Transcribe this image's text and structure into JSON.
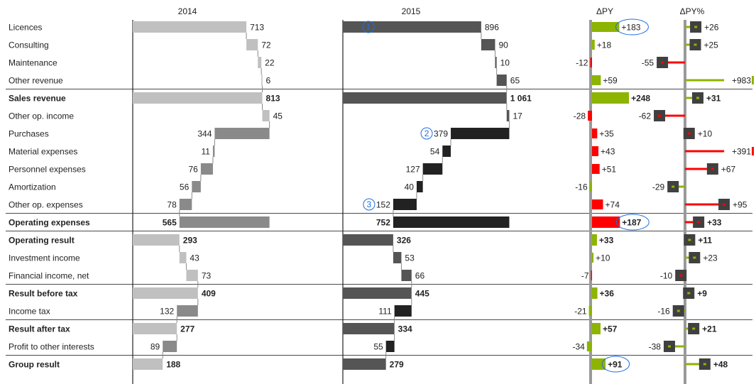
{
  "chart_data": {
    "type": "bar",
    "subtype": "variance-waterfall",
    "columns": {
      "y2014": "2014",
      "y2015": "2015",
      "dpy": "ΔPY",
      "dpyp": "ΔPY%"
    },
    "rows": [
      {
        "label": "Licences",
        "v2014": 713,
        "t2014": "713",
        "v2015": 896,
        "t2015": "896",
        "dpy": 183,
        "tdpy": "+183",
        "dpyp": 26,
        "tdpyp": "+26",
        "type": "inc",
        "bold": false,
        "sepAfter": false
      },
      {
        "label": "Consulting",
        "v2014": 72,
        "t2014": "72",
        "v2015": 90,
        "t2015": "90",
        "dpy": 18,
        "tdpy": "+18",
        "dpyp": 25,
        "tdpyp": "+25",
        "type": "inc",
        "bold": false,
        "sepAfter": false
      },
      {
        "label": "Maintenance",
        "v2014": 22,
        "t2014": "22",
        "v2015": 10,
        "t2015": "10",
        "dpy": -12,
        "tdpy": "-12",
        "dpyp": -55,
        "tdpyp": "-55",
        "type": "inc",
        "bold": false,
        "sepAfter": false
      },
      {
        "label": "Other revenue",
        "v2014": 6,
        "t2014": "6",
        "v2015": 65,
        "t2015": "65",
        "dpy": 59,
        "tdpy": "+59",
        "dpyp": 983,
        "tdpyp": "+983",
        "type": "inc",
        "bold": false,
        "sepAfter": true
      },
      {
        "label": "Sales revenue",
        "v2014": 813,
        "t2014": "813",
        "v2015": 1061,
        "t2015": "1 061",
        "dpy": 248,
        "tdpy": "+248",
        "dpyp": 31,
        "tdpyp": "+31",
        "type": "total",
        "bold": true,
        "sepAfter": false
      },
      {
        "label": "Other op. income",
        "v2014": 45,
        "t2014": "45",
        "v2015": 17,
        "t2015": "17",
        "dpy": -28,
        "tdpy": "-28",
        "dpyp": -62,
        "tdpyp": "-62",
        "type": "inc",
        "bold": false,
        "sepAfter": false
      },
      {
        "label": "Purchases",
        "v2014": 344,
        "t2014": "344",
        "v2015": 379,
        "t2015": "379",
        "dpy": 35,
        "tdpy": "+35",
        "dpyp": 10,
        "tdpyp": "+10",
        "type": "exp",
        "bold": false,
        "sepAfter": false
      },
      {
        "label": "Material expenses",
        "v2014": 11,
        "t2014": "11",
        "v2015": 54,
        "t2015": "54",
        "dpy": 43,
        "tdpy": "+43",
        "dpyp": 391,
        "tdpyp": "+391",
        "type": "exp",
        "bold": false,
        "sepAfter": false
      },
      {
        "label": "Personnel expenses",
        "v2014": 76,
        "t2014": "76",
        "v2015": 127,
        "t2015": "127",
        "dpy": 51,
        "tdpy": "+51",
        "dpyp": 67,
        "tdpyp": "+67",
        "type": "exp",
        "bold": false,
        "sepAfter": false
      },
      {
        "label": "Amortization",
        "v2014": 56,
        "t2014": "56",
        "v2015": 40,
        "t2015": "40",
        "dpy": -16,
        "tdpy": "-16",
        "dpyp": -29,
        "tdpyp": "-29",
        "type": "exp",
        "bold": false,
        "sepAfter": false
      },
      {
        "label": "Other op. expenses",
        "v2014": 78,
        "t2014": "78",
        "v2015": 152,
        "t2015": "152",
        "dpy": 74,
        "tdpy": "+74",
        "dpyp": 95,
        "tdpyp": "+95",
        "type": "exp",
        "bold": false,
        "sepAfter": true
      },
      {
        "label": "Operating expenses",
        "v2014": 565,
        "t2014": "565",
        "v2015": 752,
        "t2015": "752",
        "dpy": 187,
        "tdpy": "+187",
        "dpyp": 33,
        "tdpyp": "+33",
        "type": "exptotal",
        "bold": true,
        "sepAfter": true
      },
      {
        "label": "Operating result",
        "v2014": 293,
        "t2014": "293",
        "v2015": 326,
        "t2015": "326",
        "dpy": 33,
        "tdpy": "+33",
        "dpyp": 11,
        "tdpyp": "+11",
        "type": "result",
        "bold": true,
        "sepAfter": false
      },
      {
        "label": "Investment income",
        "v2014": 43,
        "t2014": "43",
        "v2015": 53,
        "t2015": "53",
        "dpy": 10,
        "tdpy": "+10",
        "dpyp": 23,
        "tdpyp": "+23",
        "type": "inc",
        "bold": false,
        "sepAfter": false
      },
      {
        "label": "Financial income, net",
        "v2014": 73,
        "t2014": "73",
        "v2015": 66,
        "t2015": "66",
        "dpy": -7,
        "tdpy": "-7",
        "dpyp": -10,
        "tdpyp": "-10",
        "type": "inc",
        "bold": false,
        "sepAfter": true
      },
      {
        "label": "Result before tax",
        "v2014": 409,
        "t2014": "409",
        "v2015": 445,
        "t2015": "445",
        "dpy": 36,
        "tdpy": "+36",
        "dpyp": 9,
        "tdpyp": "+9",
        "type": "result",
        "bold": true,
        "sepAfter": false
      },
      {
        "label": "Income tax",
        "v2014": 132,
        "t2014": "132",
        "v2015": 111,
        "t2015": "111",
        "dpy": -21,
        "tdpy": "-21",
        "dpyp": -16,
        "tdpyp": "-16",
        "type": "ded",
        "bold": false,
        "sepAfter": true
      },
      {
        "label": "Result after tax",
        "v2014": 277,
        "t2014": "277",
        "v2015": 334,
        "t2015": "334",
        "dpy": 57,
        "tdpy": "+57",
        "dpyp": 21,
        "tdpyp": "+21",
        "type": "result",
        "bold": true,
        "sepAfter": false
      },
      {
        "label": "Profit to other interests",
        "v2014": 89,
        "t2014": "89",
        "v2015": 55,
        "t2015": "55",
        "dpy": -34,
        "tdpy": "-34",
        "dpyp": -38,
        "tdpyp": "-38",
        "type": "ded",
        "bold": false,
        "sepAfter": true
      },
      {
        "label": "Group result",
        "v2014": 188,
        "t2014": "188",
        "v2015": 279,
        "t2015": "279",
        "dpy": 91,
        "tdpy": "+91",
        "dpyp": 48,
        "tdpyp": "+48",
        "type": "result",
        "bold": true,
        "sepAfter": false
      }
    ],
    "markers": [
      {
        "text": "1",
        "row": 0,
        "col": "y2015"
      },
      {
        "text": "2",
        "row": 6,
        "col": "y2015"
      },
      {
        "text": "3",
        "row": 10,
        "col": "y2015"
      }
    ],
    "ellipses": [
      {
        "row": 0,
        "col": "dpy"
      },
      {
        "row": 11,
        "col": "dpy"
      },
      {
        "row": 19,
        "col": "dpy"
      }
    ],
    "colors": {
      "bar2014": "#c0c0c0",
      "bar2014_dark": "#8a8a8a",
      "bar2015": "#555555",
      "bar2015_dark": "#222222",
      "positive": "#8cb400",
      "negative": "#ff0000",
      "axis": "#999999",
      "marker": "#1e6fe0",
      "pin_head": "#404040"
    }
  }
}
